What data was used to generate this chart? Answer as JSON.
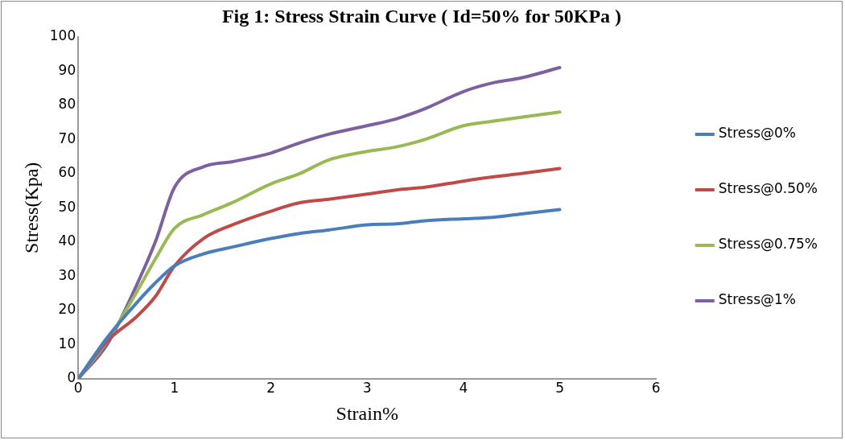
{
  "chart_data": {
    "type": "line",
    "title": "Fig 1: Stress Strain Curve ( Id=50% for 50KPa )",
    "xlabel": "Strain%",
    "ylabel": "Stress(Kpa)",
    "x": [
      0,
      0.3,
      0.6,
      0.8,
      1,
      1.3,
      1.6,
      2,
      2.3,
      2.6,
      3,
      3.3,
      3.6,
      4,
      4.3,
      4.6,
      5
    ],
    "series": [
      {
        "name": "Stress@0%",
        "color": "#4a7ebb",
        "values": [
          0,
          12,
          22,
          28,
          33,
          36.5,
          38.5,
          41,
          42.5,
          43.5,
          45,
          45.3,
          46.2,
          46.8,
          47.2,
          48.2,
          49.5
        ]
      },
      {
        "name": "Stress@0.50%",
        "color": "#be4b48",
        "values": [
          0,
          11,
          18,
          24,
          33,
          41,
          45,
          49,
          51.5,
          52.5,
          54,
          55.2,
          56,
          57.8,
          59,
          60,
          61.5
        ]
      },
      {
        "name": "Stress@0.75%",
        "color": "#98b954",
        "values": [
          0,
          11,
          25,
          35,
          44,
          48,
          51.5,
          57,
          60,
          64,
          66.5,
          67.8,
          70,
          74,
          75.3,
          76.5,
          78
        ]
      },
      {
        "name": "Stress@1%",
        "color": "#7d60a0",
        "values": [
          0,
          10,
          27,
          40,
          56,
          62,
          63.5,
          66,
          69,
          71.5,
          74,
          76,
          79,
          84,
          86.5,
          88,
          91
        ]
      }
    ],
    "xlim": [
      0,
      6
    ],
    "xticks": [
      0,
      1,
      2,
      3,
      4,
      5,
      6
    ],
    "ylim": [
      0,
      100
    ],
    "yticks": [
      0,
      10,
      20,
      30,
      40,
      50,
      60,
      70,
      80,
      90,
      100
    ],
    "grid": false,
    "legend": "right",
    "marker": "none",
    "line_style": "solid"
  }
}
